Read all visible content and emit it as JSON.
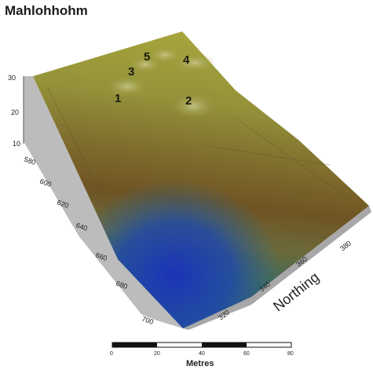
{
  "title": "Mahlohhohm",
  "site_labels": [
    "1",
    "2",
    "3",
    "4",
    "5"
  ],
  "elevation_axis": {
    "ticks": [
      "30",
      "20",
      "10"
    ]
  },
  "easting_axis": {
    "ticks": [
      "580",
      "600",
      "620",
      "640",
      "660",
      "680",
      "700"
    ]
  },
  "northing_axis": {
    "label": "Northing",
    "ticks": [
      "320",
      "340",
      "360",
      "380"
    ]
  },
  "scale_bar": {
    "label": "Metres",
    "ticks": [
      "0",
      "20",
      "40",
      "60",
      "80"
    ],
    "segments": [
      0,
      20,
      40,
      60,
      80
    ]
  },
  "colors": {
    "high_terrain": "#9c9a38",
    "mid_terrain": "#7a5a28",
    "low_terrain": "#1c3fa8",
    "side_wall": "#b9b9b9"
  }
}
